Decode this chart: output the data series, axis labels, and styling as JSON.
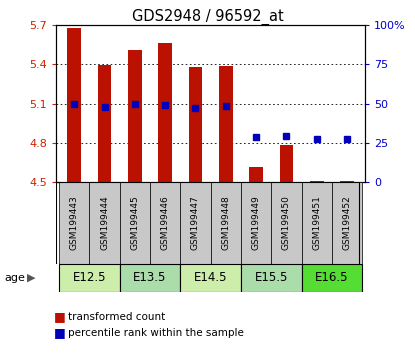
{
  "title": "GDS2948 / 96592_at",
  "samples": [
    "GSM199443",
    "GSM199444",
    "GSM199445",
    "GSM199446",
    "GSM199447",
    "GSM199448",
    "GSM199449",
    "GSM199450",
    "GSM199451",
    "GSM199452"
  ],
  "bar_values": [
    5.675,
    5.395,
    5.51,
    5.565,
    5.38,
    5.385,
    4.62,
    4.785,
    4.51,
    4.51
  ],
  "bar_bottom": 4.5,
  "percentile_values": [
    5.095,
    5.075,
    5.095,
    5.09,
    5.065,
    5.08,
    4.845,
    4.855,
    4.83,
    4.83
  ],
  "ylim": [
    4.5,
    5.7
  ],
  "yticks_left": [
    4.5,
    4.8,
    5.1,
    5.4,
    5.7
  ],
  "yticks_right": [
    0,
    25,
    50,
    75,
    100
  ],
  "age_groups": [
    {
      "label": "E12.5",
      "indices": [
        0,
        1
      ],
      "color": "#cceeaa"
    },
    {
      "label": "E13.5",
      "indices": [
        2,
        3
      ],
      "color": "#aaddaa"
    },
    {
      "label": "E14.5",
      "indices": [
        4,
        5
      ],
      "color": "#cceeaa"
    },
    {
      "label": "E15.5",
      "indices": [
        6,
        7
      ],
      "color": "#aaddaa"
    },
    {
      "label": "E16.5",
      "indices": [
        8,
        9
      ],
      "color": "#66dd44"
    }
  ],
  "bar_color": "#bb1100",
  "percentile_color": "#0000bb",
  "sample_box_color": "#c8c8c8",
  "left_tick_color": "#cc2200",
  "right_tick_color": "#0000cc",
  "legend_entries": [
    "transformed count",
    "percentile rank within the sample"
  ],
  "age_label": "age",
  "fig_width": 4.15,
  "fig_height": 3.54,
  "dpi": 100,
  "bar_width": 0.45,
  "marker_size": 4
}
